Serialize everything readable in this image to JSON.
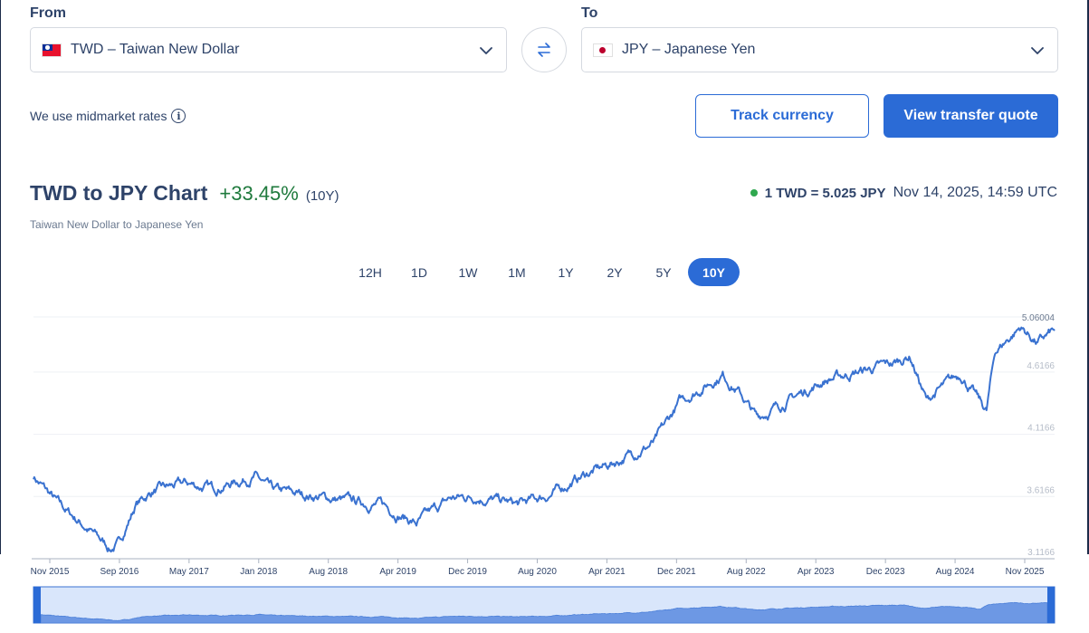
{
  "converter": {
    "from_label": "From",
    "to_label": "To",
    "from_value": "TWD – Taiwan New Dollar",
    "to_value": "JPY – Japanese Yen",
    "midmarket_text": "We use midmarket rates",
    "track_button": "Track currency",
    "quote_button": "View transfer quote"
  },
  "header": {
    "title": "TWD to JPY Chart",
    "change": "+33.45%",
    "period": "(10Y)",
    "subtitle": "Taiwan New Dollar to Japanese Yen",
    "rate": "1 TWD = 5.025 JPY",
    "timestamp": "Nov 14, 2025, 14:59 UTC"
  },
  "ranges": [
    "12H",
    "1D",
    "1W",
    "1M",
    "1Y",
    "2Y",
    "5Y",
    "10Y"
  ],
  "active_range": "10Y",
  "colors": {
    "accent": "#2b6bd6",
    "line": "#3a72d0",
    "positive": "#1f7a3d",
    "status_dot": "#2fa84f"
  },
  "chart_data": {
    "type": "line",
    "ylim": [
      3.1166,
      5.06004
    ],
    "y_ticks": [
      "3.1166",
      "3.6166",
      "4.1166",
      "4.6166"
    ],
    "y_max_label": "5.06004",
    "x_tick_labels": [
      "Nov 2015",
      "Sep 2016",
      "May 2017",
      "Jan 2018",
      "Aug 2018",
      "Apr 2019",
      "Dec 2019",
      "Aug 2020",
      "Apr 2021",
      "Dec 2021",
      "Aug 2022",
      "Apr 2023",
      "Dec 2023",
      "Aug 2024",
      "Nov 2025"
    ],
    "series": [
      {
        "x": [
          "2015-11",
          "2016-02",
          "2016-05",
          "2016-08",
          "2016-09",
          "2016-11",
          "2017-01",
          "2017-05",
          "2017-08",
          "2018-01",
          "2018-03",
          "2018-08",
          "2018-12",
          "2019-04",
          "2019-08",
          "2019-12",
          "2020-03",
          "2020-08",
          "2020-12",
          "2021-04",
          "2021-07",
          "2021-12",
          "2022-03",
          "2022-08",
          "2022-10",
          "2022-12",
          "2023-04",
          "2023-08",
          "2023-12",
          "2024-04",
          "2024-06",
          "2024-08",
          "2024-09",
          "2024-12",
          "2025-03",
          "2025-04",
          "2025-07",
          "2025-09",
          "2025-11"
        ],
        "values": [
          3.78,
          3.55,
          3.38,
          3.2,
          3.23,
          3.55,
          3.66,
          3.72,
          3.68,
          3.78,
          3.66,
          3.62,
          3.58,
          3.55,
          3.4,
          3.6,
          3.62,
          3.55,
          3.64,
          3.8,
          3.88,
          4.05,
          4.38,
          4.6,
          4.45,
          4.25,
          4.4,
          4.55,
          4.62,
          4.68,
          4.75,
          4.38,
          4.45,
          4.6,
          4.3,
          4.78,
          4.98,
          4.85,
          4.95
        ]
      }
    ]
  }
}
